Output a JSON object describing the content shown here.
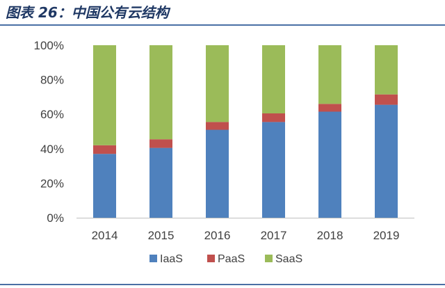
{
  "figure_title": "图表 26：中国公有云结构",
  "chart_data": {
    "type": "bar",
    "stacked": true,
    "categories": [
      "2014",
      "2015",
      "2016",
      "2017",
      "2018",
      "2019"
    ],
    "series": [
      {
        "name": "IaaS",
        "color": "#4f81bd",
        "values": [
          37,
          40.5,
          51,
          55.5,
          61.5,
          65.5
        ]
      },
      {
        "name": "PaaS",
        "color": "#c0504d",
        "values": [
          5,
          5,
          4.5,
          5,
          4.5,
          6
        ]
      },
      {
        "name": "SaaS",
        "color": "#9bbb59",
        "values": [
          58,
          54.5,
          44.5,
          39.5,
          34,
          28.5
        ]
      }
    ],
    "ylim": [
      0,
      100
    ],
    "yticks": [
      "0%",
      "20%",
      "40%",
      "60%",
      "80%",
      "100%"
    ],
    "ytick_values": [
      0,
      20,
      40,
      60,
      80,
      100
    ],
    "grid": false,
    "legend_position": "bottom"
  }
}
